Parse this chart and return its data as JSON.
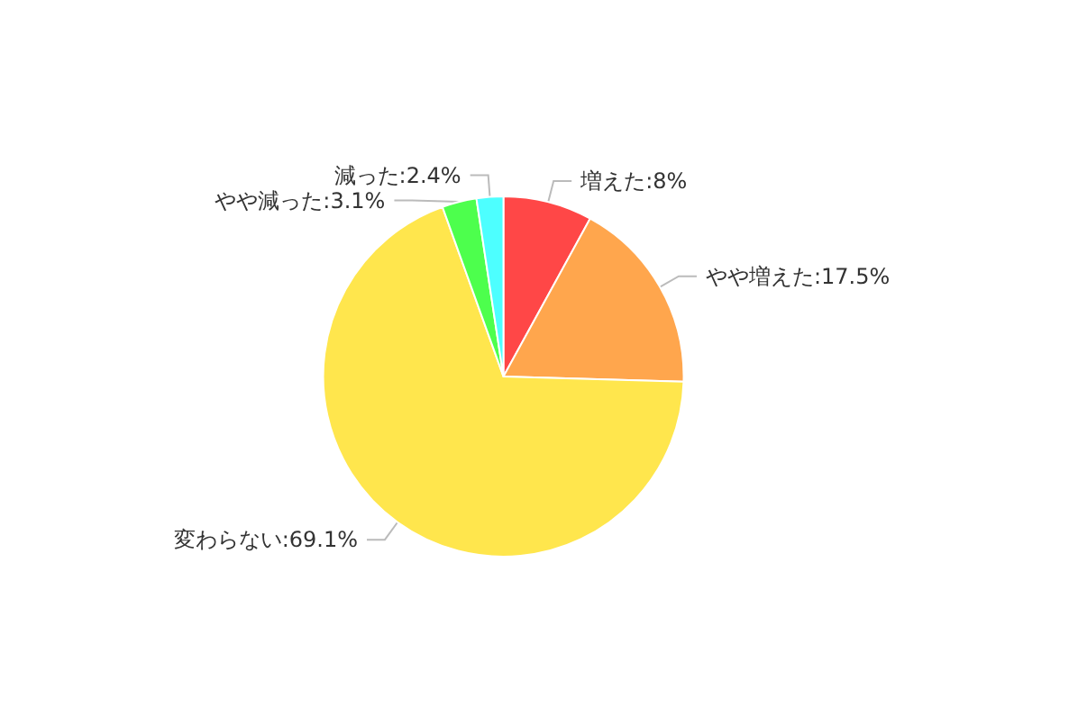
{
  "chart_data": {
    "type": "pie",
    "categories": [
      "増えた",
      "やや増えた",
      "変わらない",
      "やや減った",
      "減った"
    ],
    "values": [
      8,
      17.5,
      69.1,
      3.1,
      2.4
    ],
    "colors": [
      "#ff4747",
      "#ffa64d",
      "#ffe64d",
      "#4dff4d",
      "#4dffff"
    ],
    "value_labels": [
      "8%",
      "17.5%",
      "69.1%",
      "3.1%",
      "2.4%"
    ],
    "legend": false
  }
}
